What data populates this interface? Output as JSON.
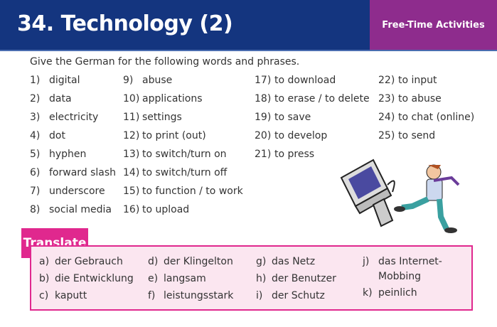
{
  "header": {
    "title": "34. Technology (2)",
    "category": "Free-Time Activities",
    "category_color": "#8e2c8d",
    "title_color": "#14357f"
  },
  "instructions": "Give the German for the following words and phrases.",
  "words": [
    {
      "n": "1)",
      "t": "digital"
    },
    {
      "n": "2)",
      "t": "data"
    },
    {
      "n": "3)",
      "t": "electricity"
    },
    {
      "n": "4)",
      "t": "dot"
    },
    {
      "n": "5)",
      "t": "hyphen"
    },
    {
      "n": "6)",
      "t": "forward slash"
    },
    {
      "n": "7)",
      "t": "underscore"
    },
    {
      "n": "8)",
      "t": "social media"
    },
    {
      "n": "9)",
      "t": "abuse"
    },
    {
      "n": "10)",
      "t": "applications"
    },
    {
      "n": "11)",
      "t": "settings"
    },
    {
      "n": "12)",
      "t": "to print (out)"
    },
    {
      "n": "13)",
      "t": "to switch/turn on"
    },
    {
      "n": "14)",
      "t": "to switch/turn off"
    },
    {
      "n": "15)",
      "t": "to function / to work"
    },
    {
      "n": "16)",
      "t": "to upload"
    },
    {
      "n": "17)",
      "t": "to download"
    },
    {
      "n": "18)",
      "t": "to erase / to delete"
    },
    {
      "n": "19)",
      "t": "to save"
    },
    {
      "n": "20)",
      "t": "to develop"
    },
    {
      "n": "21)",
      "t": "to press"
    },
    {
      "n": "22)",
      "t": "to input"
    },
    {
      "n": "23)",
      "t": "to abuse"
    },
    {
      "n": "24)",
      "t": "to chat (online)"
    },
    {
      "n": "25)",
      "t": "to send"
    }
  ],
  "translate": {
    "label": "Translate",
    "items": [
      {
        "n": "a)",
        "t": "der Gebrauch"
      },
      {
        "n": "b)",
        "t": "die Entwicklung"
      },
      {
        "n": "c)",
        "t": "kaputt"
      },
      {
        "n": "d)",
        "t": "der Klingelton"
      },
      {
        "n": "e)",
        "t": "langsam"
      },
      {
        "n": "f)",
        "t": "leistungsstark"
      },
      {
        "n": "g)",
        "t": "das Netz"
      },
      {
        "n": "h)",
        "t": "der Benutzer"
      },
      {
        "n": "i)",
        "t": "der Schutz"
      },
      {
        "n": "j)",
        "t": "das Internet-"
      },
      {
        "n": "",
        "t": "Mobbing"
      },
      {
        "n": "k)",
        "t": "peinlich"
      }
    ]
  }
}
